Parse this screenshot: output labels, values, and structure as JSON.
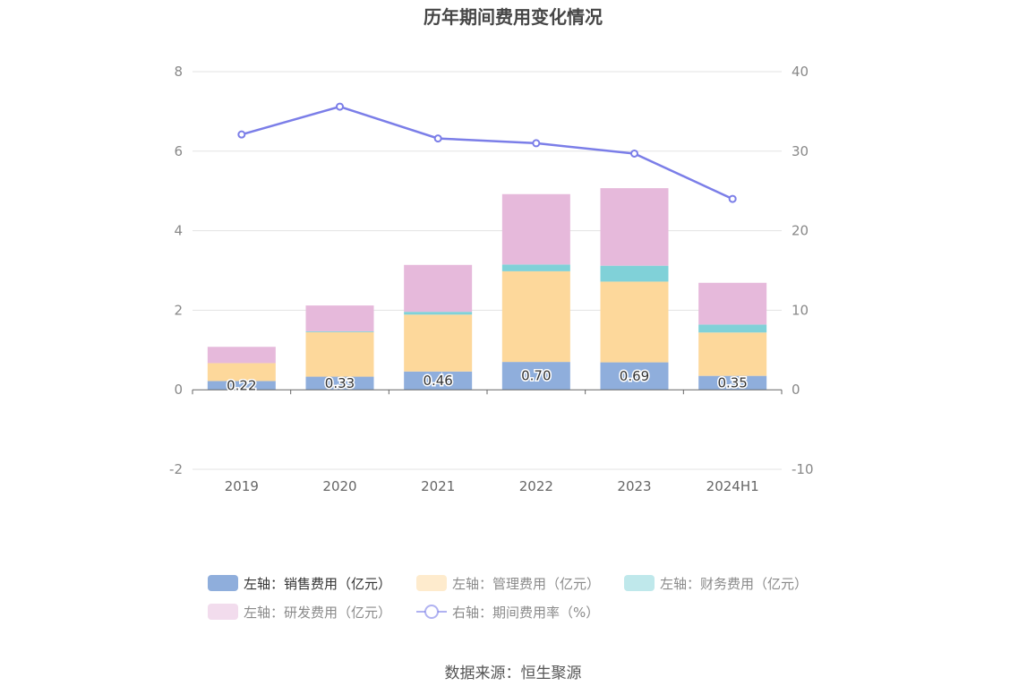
{
  "title": "历年期间费用变化情况",
  "source": "数据来源：恒生聚源",
  "colors": {
    "sales": "#8faedc",
    "admin": "#fdd89b",
    "finance": "#80d1d8",
    "rnd": "#e6b9db",
    "rate": "#7b7ee8",
    "grid": "#e3e3e3",
    "axis": "#666666"
  },
  "chart_data": {
    "type": "bar",
    "stacked": true,
    "title": "历年期间费用变化情况",
    "categories": [
      "2019",
      "2020",
      "2021",
      "2022",
      "2023",
      "2024H1"
    ],
    "left_axis": {
      "ticks": [
        "-2",
        "0",
        "2",
        "4",
        "6",
        "8"
      ],
      "ylim": [
        -2,
        8
      ]
    },
    "right_axis": {
      "ticks": [
        "-10",
        "0",
        "10",
        "20",
        "30",
        "40"
      ],
      "ylim": [
        -10,
        40
      ]
    },
    "series": [
      {
        "key": "sales",
        "name": "左轴：销售费用（亿元）",
        "axis": "left",
        "type": "bar",
        "values": [
          0.22,
          0.33,
          0.46,
          0.7,
          0.69,
          0.35
        ],
        "labels": [
          "0.22",
          "0.33",
          "0.46",
          "0.70",
          "0.69",
          "0.35"
        ]
      },
      {
        "key": "admin",
        "name": "左轴：管理费用（亿元）",
        "axis": "left",
        "type": "bar",
        "values": [
          0.45,
          1.12,
          1.43,
          2.28,
          2.03,
          1.09
        ]
      },
      {
        "key": "finance",
        "name": "左轴：财务费用（亿元）",
        "axis": "left",
        "type": "bar",
        "values": [
          0.0,
          0.02,
          0.07,
          0.17,
          0.4,
          0.2
        ]
      },
      {
        "key": "rnd",
        "name": "左轴：研发费用（亿元）",
        "axis": "left",
        "type": "bar",
        "values": [
          0.41,
          0.65,
          1.18,
          1.77,
          1.95,
          1.05
        ]
      },
      {
        "key": "rate",
        "name": "右轴：期间费用率（%）",
        "axis": "right",
        "type": "line",
        "values": [
          32.1,
          35.6,
          31.6,
          31.0,
          29.7,
          24.0
        ]
      }
    ],
    "legend_position": "bottom"
  }
}
